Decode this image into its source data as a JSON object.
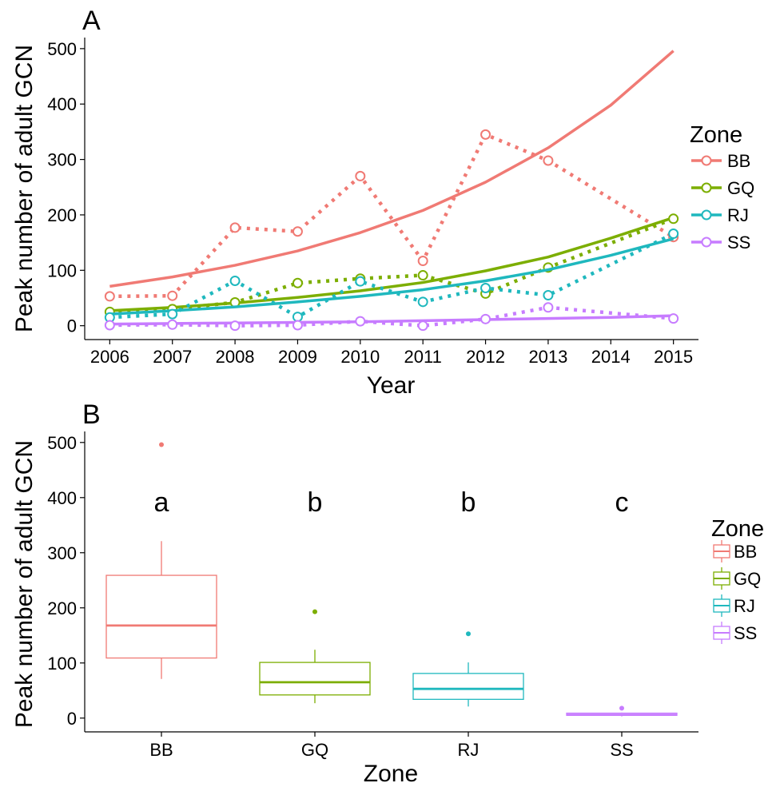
{
  "chart_data": [
    {
      "type": "line",
      "panel_label": "A",
      "title": "",
      "xlabel": "Year",
      "ylabel": "Peak number of adult GCN",
      "x": [
        2006,
        2007,
        2008,
        2009,
        2010,
        2011,
        2012,
        2013,
        2014,
        2015
      ],
      "xlim": [
        2005.6,
        2015.4
      ],
      "ylim": [
        -25,
        520
      ],
      "yticks": [
        0,
        100,
        200,
        300,
        400,
        500
      ],
      "grid": false,
      "legend": {
        "title": "Zone",
        "position": "right"
      },
      "colors": {
        "BB": "#F07A74",
        "GQ": "#7CAE00",
        "RJ": "#1FB8BE",
        "SS": "#C77CFF"
      },
      "series": [
        {
          "name": "BB",
          "observed": [
            [
              2006,
              53
            ],
            [
              2007,
              54
            ],
            [
              2008,
              177
            ],
            [
              2009,
              170
            ],
            [
              2010,
              270
            ],
            [
              2011,
              117
            ],
            [
              2012,
              345
            ],
            [
              2013,
              298
            ],
            [
              2015,
              160
            ]
          ],
          "fitted": [
            71,
            88,
            109,
            135,
            168,
            208,
            259,
            321,
            398,
            496
          ]
        },
        {
          "name": "GQ",
          "observed": [
            [
              2006,
              25
            ],
            [
              2007,
              30
            ],
            [
              2008,
              42
            ],
            [
              2009,
              77
            ],
            [
              2010,
              85
            ],
            [
              2011,
              91
            ],
            [
              2012,
              58
            ],
            [
              2013,
              105
            ],
            [
              2015,
              193
            ]
          ],
          "fitted": [
            27,
            33,
            41,
            51,
            63,
            78,
            99,
            124,
            158,
            195
          ]
        },
        {
          "name": "RJ",
          "observed": [
            [
              2006,
              15
            ],
            [
              2007,
              21
            ],
            [
              2008,
              81
            ],
            [
              2009,
              16
            ],
            [
              2010,
              80
            ],
            [
              2011,
              43
            ],
            [
              2012,
              68
            ],
            [
              2013,
              55
            ],
            [
              2015,
              166
            ]
          ],
          "fitted": [
            21,
            27,
            34,
            43,
            53,
            65,
            81,
            101,
            127,
            157
          ]
        },
        {
          "name": "SS",
          "observed": [
            [
              2006,
              1
            ],
            [
              2007,
              2
            ],
            [
              2008,
              0
            ],
            [
              2009,
              1
            ],
            [
              2010,
              8
            ],
            [
              2011,
              0
            ],
            [
              2012,
              12
            ],
            [
              2013,
              33
            ],
            [
              2015,
              13
            ]
          ],
          "fitted": [
            3,
            4,
            5,
            6,
            7,
            9,
            11,
            13,
            15,
            18
          ]
        }
      ]
    },
    {
      "type": "box",
      "panel_label": "B",
      "title": "",
      "xlabel": "Zone",
      "ylabel": "Peak number of adult GCN",
      "categories": [
        "BB",
        "GQ",
        "RJ",
        "SS"
      ],
      "ylim": [
        -25,
        520
      ],
      "yticks": [
        0,
        100,
        200,
        300,
        400,
        500
      ],
      "grid": false,
      "legend": {
        "title": "Zone",
        "position": "right"
      },
      "boxes": [
        {
          "name": "BB",
          "color": "#F07A74",
          "lower_whisker": 71,
          "q1": 109,
          "median": 168,
          "q3": 259,
          "upper_whisker": 321,
          "outliers": [
            496
          ]
        },
        {
          "name": "GQ",
          "color": "#7CAE00",
          "lower_whisker": 27,
          "q1": 42,
          "median": 65,
          "q3": 101,
          "upper_whisker": 124,
          "outliers": [
            193
          ]
        },
        {
          "name": "RJ",
          "color": "#1FB8BE",
          "lower_whisker": 21,
          "q1": 34,
          "median": 53,
          "q3": 81,
          "upper_whisker": 101,
          "outliers": [
            153
          ]
        },
        {
          "name": "SS",
          "color": "#C77CFF",
          "lower_whisker": 3,
          "q1": 5,
          "median": 6,
          "q3": 9,
          "upper_whisker": 10,
          "outliers": [
            18
          ]
        }
      ],
      "annotations": [
        {
          "category": "BB",
          "text": "a"
        },
        {
          "category": "GQ",
          "text": "b"
        },
        {
          "category": "RJ",
          "text": "b"
        },
        {
          "category": "SS",
          "text": "c"
        }
      ]
    }
  ]
}
